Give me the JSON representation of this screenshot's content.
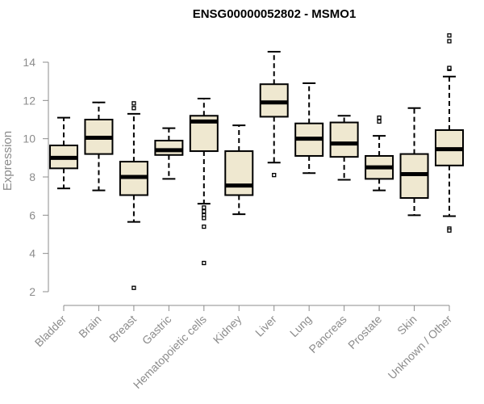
{
  "chart_data": {
    "type": "boxplot",
    "title": "ENSG00000052802 - MSMO1",
    "xlabel": "",
    "ylabel": "Expression",
    "ylim": [
      2,
      15
    ],
    "yticks": [
      2,
      4,
      6,
      8,
      10,
      12,
      14
    ],
    "grid": false,
    "box_fill": "#efe8d0",
    "box_stroke": "#000000",
    "categories": [
      "Bladder",
      "Brain",
      "Breast",
      "Gastric",
      "Hematopoietic cells",
      "Kidney",
      "Liver",
      "Lung",
      "Pancreas",
      "Prostate",
      "Skin",
      "Unknown / Other"
    ],
    "boxes": [
      {
        "whisker_low": 7.4,
        "q1": 8.45,
        "median": 9.0,
        "q3": 9.65,
        "whisker_high": 11.1,
        "outliers": []
      },
      {
        "whisker_low": 7.3,
        "q1": 9.2,
        "median": 10.05,
        "q3": 11.0,
        "whisker_high": 11.9,
        "outliers": []
      },
      {
        "whisker_low": 5.65,
        "q1": 7.05,
        "median": 8.0,
        "q3": 8.8,
        "whisker_high": 11.3,
        "outliers": [
          11.6,
          11.85,
          2.2
        ]
      },
      {
        "whisker_low": 7.9,
        "q1": 9.15,
        "median": 9.4,
        "q3": 9.9,
        "whisker_high": 10.55,
        "outliers": []
      },
      {
        "whisker_low": 6.6,
        "q1": 9.35,
        "median": 10.9,
        "q3": 11.2,
        "whisker_high": 12.1,
        "outliers": [
          6.4,
          6.2,
          6.0,
          5.85,
          5.4,
          3.5
        ]
      },
      {
        "whisker_low": 6.05,
        "q1": 7.05,
        "median": 7.55,
        "q3": 9.35,
        "whisker_high": 10.7,
        "outliers": []
      },
      {
        "whisker_low": 8.75,
        "q1": 11.15,
        "median": 11.9,
        "q3": 12.85,
        "whisker_high": 14.55,
        "outliers": [
          8.1
        ]
      },
      {
        "whisker_low": 8.2,
        "q1": 9.1,
        "median": 10.0,
        "q3": 10.8,
        "whisker_high": 12.9,
        "outliers": []
      },
      {
        "whisker_low": 7.85,
        "q1": 9.05,
        "median": 9.75,
        "q3": 10.85,
        "whisker_high": 11.2,
        "outliers": []
      },
      {
        "whisker_low": 7.3,
        "q1": 7.9,
        "median": 8.5,
        "q3": 9.1,
        "whisker_high": 10.15,
        "outliers": [
          10.9,
          11.1
        ]
      },
      {
        "whisker_low": 6.0,
        "q1": 6.9,
        "median": 8.15,
        "q3": 9.2,
        "whisker_high": 11.6,
        "outliers": []
      },
      {
        "whisker_low": 5.95,
        "q1": 8.6,
        "median": 9.45,
        "q3": 10.45,
        "whisker_high": 13.25,
        "outliers": [
          13.65,
          13.7,
          15.1,
          15.4,
          5.3,
          5.2
        ]
      }
    ]
  }
}
